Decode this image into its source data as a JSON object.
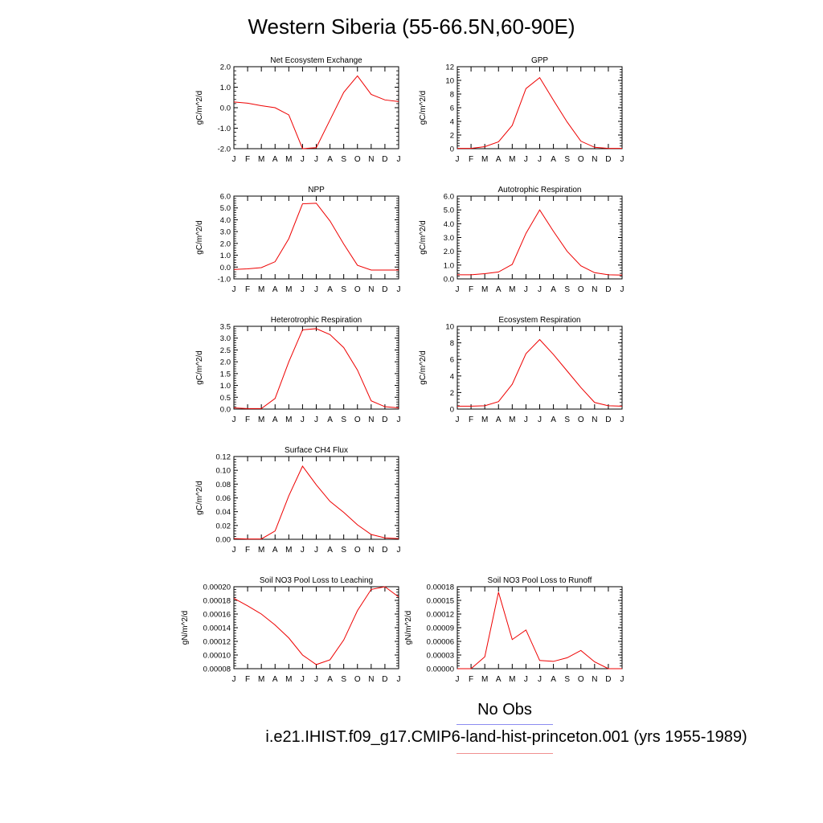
{
  "title": "Western Siberia (55-66.5N,60-90E)",
  "colors": {
    "model_line": "#ee0000",
    "obs_legend": "#8c8cf0",
    "model_legend": "#f09090"
  },
  "legend": {
    "obs_label": "No Obs",
    "model_label": "i.e21.IHIST.f09_g17.CMIP6-land-hist-princeton.001 (yrs 1955-1989)"
  },
  "months": [
    "J",
    "F",
    "M",
    "A",
    "M",
    "J",
    "J",
    "A",
    "S",
    "O",
    "N",
    "D",
    "J"
  ],
  "chart_data": [
    {
      "id": "nee",
      "type": "line",
      "title": "Net Ecosystem Exchange",
      "ylabel": "gC/m^2/d",
      "ylim": [
        -2.0,
        2.0
      ],
      "yticks": [
        -2.0,
        -1.0,
        0.0,
        1.0,
        2.0
      ],
      "yticklabels": [
        "-2.0",
        "-1.0",
        "0.0",
        "1.0",
        "2.0"
      ],
      "values": [
        0.28,
        0.22,
        0.1,
        0.0,
        -0.35,
        -2.0,
        -1.95,
        -0.6,
        0.75,
        1.55,
        0.65,
        0.38,
        0.3
      ]
    },
    {
      "id": "gpp",
      "type": "line",
      "title": "GPP",
      "ylabel": "gC/m^2/d",
      "ylim": [
        0,
        12
      ],
      "yticks": [
        0,
        2,
        4,
        6,
        8,
        10,
        12
      ],
      "yticklabels": [
        "0",
        "2",
        "4",
        "6",
        "8",
        "10",
        "12"
      ],
      "values": [
        0.05,
        0.05,
        0.3,
        1.0,
        3.4,
        8.8,
        10.4,
        7.1,
        3.9,
        1.1,
        0.2,
        0.05,
        0.05
      ]
    },
    {
      "id": "npp",
      "type": "line",
      "title": "NPP",
      "ylabel": "gC/m^2/d",
      "ylim": [
        -1.0,
        6.0
      ],
      "yticks": [
        -1.0,
        0.0,
        1.0,
        2.0,
        3.0,
        4.0,
        5.0,
        6.0
      ],
      "yticklabels": [
        "-1.0",
        "0.0",
        "1.0",
        "2.0",
        "3.0",
        "4.0",
        "5.0",
        "6.0"
      ],
      "values": [
        -0.2,
        -0.15,
        -0.05,
        0.45,
        2.4,
        5.35,
        5.4,
        3.9,
        1.95,
        0.15,
        -0.25,
        -0.25,
        -0.25
      ]
    },
    {
      "id": "ar",
      "type": "line",
      "title": "Autotrophic Respiration",
      "ylabel": "gC/m^2/d",
      "ylim": [
        0.0,
        6.0
      ],
      "yticks": [
        0.0,
        1.0,
        2.0,
        3.0,
        4.0,
        5.0,
        6.0
      ],
      "yticklabels": [
        "0.0",
        "1.0",
        "2.0",
        "3.0",
        "4.0",
        "5.0",
        "6.0"
      ],
      "values": [
        0.3,
        0.3,
        0.38,
        0.5,
        1.05,
        3.3,
        5.0,
        3.45,
        2.0,
        0.95,
        0.45,
        0.3,
        0.28
      ]
    },
    {
      "id": "hr",
      "type": "line",
      "title": "Heterotrophic Respiration",
      "ylabel": "gC/m^2/d",
      "ylim": [
        0.0,
        3.5
      ],
      "yticks": [
        0.0,
        0.5,
        1.0,
        1.5,
        2.0,
        2.5,
        3.0,
        3.5
      ],
      "yticklabels": [
        "0.0",
        "0.5",
        "1.0",
        "1.5",
        "2.0",
        "2.5",
        "3.0",
        "3.5"
      ],
      "values": [
        0.05,
        0.02,
        0.02,
        0.45,
        2.0,
        3.35,
        3.4,
        3.15,
        2.6,
        1.65,
        0.35,
        0.1,
        0.05
      ]
    },
    {
      "id": "er",
      "type": "line",
      "title": "Ecosystem Respiration",
      "ylabel": "gC/m^2/d",
      "ylim": [
        0,
        10
      ],
      "yticks": [
        0,
        2,
        4,
        6,
        8,
        10
      ],
      "yticklabels": [
        "0",
        "2",
        "4",
        "6",
        "8",
        "10"
      ],
      "values": [
        0.35,
        0.35,
        0.4,
        0.9,
        3.0,
        6.7,
        8.4,
        6.6,
        4.6,
        2.6,
        0.8,
        0.4,
        0.35
      ]
    },
    {
      "id": "ch4",
      "type": "line",
      "title": "Surface CH4 Flux",
      "ylabel": "gC/m^2/d",
      "ylim": [
        0.0,
        0.12
      ],
      "yticks": [
        0.0,
        0.02,
        0.04,
        0.06,
        0.08,
        0.1,
        0.12
      ],
      "yticklabels": [
        "0.00",
        "0.02",
        "0.04",
        "0.06",
        "0.08",
        "0.10",
        "0.12"
      ],
      "values": [
        0.001,
        0.0005,
        0.0005,
        0.012,
        0.063,
        0.106,
        0.079,
        0.055,
        0.039,
        0.021,
        0.007,
        0.002,
        0.001
      ]
    },
    {
      "id": "leach",
      "type": "line",
      "title": "Soil NO3 Pool Loss to Leaching",
      "ylabel": "gN/m^2/d",
      "ylim": [
        8e-05,
        0.0002
      ],
      "yticks": [
        8e-05,
        0.0001,
        0.00012,
        0.00014,
        0.00016,
        0.00018,
        0.0002
      ],
      "yticklabels": [
        "0.00008",
        "0.00010",
        "0.00012",
        "0.00014",
        "0.00016",
        "0.00018",
        "0.00020"
      ],
      "values": [
        0.000183,
        0.000172,
        0.00016,
        0.000144,
        0.000125,
        0.0001,
        8.6e-05,
        9.3e-05,
        0.000122,
        0.000165,
        0.000196,
        0.0002,
        0.000185
      ]
    },
    {
      "id": "runoff",
      "type": "line",
      "title": "Soil NO3 Pool Loss to Runoff",
      "ylabel": "gN/m^2/d",
      "ylim": [
        0.0,
        0.00018
      ],
      "yticks": [
        0.0,
        3e-05,
        6e-05,
        9e-05,
        0.00012,
        0.00015,
        0.00018
      ],
      "yticklabels": [
        "0.00000",
        "0.00003",
        "0.00006",
        "0.00009",
        "0.00012",
        "0.00015",
        "0.00018"
      ],
      "values": [
        0.0,
        0.0,
        2.6e-05,
        0.000168,
        6.4e-05,
        8.5e-05,
        1.8e-05,
        1.6e-05,
        2.4e-05,
        4e-05,
        1.5e-05,
        0.0,
        0.0
      ]
    }
  ]
}
